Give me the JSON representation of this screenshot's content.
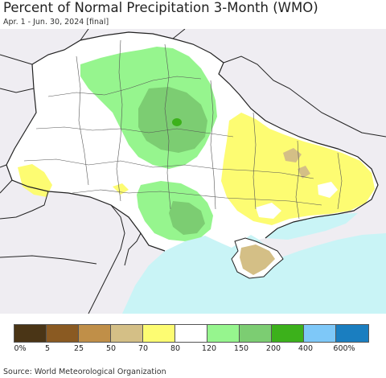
{
  "header": {
    "title": "Percent of Normal Precipitation 3-Month (WMO)",
    "subtitle": "Apr. 1 - Jun. 30, 2024 [final]"
  },
  "legend": {
    "colors": [
      "#4a3516",
      "#8a5a22",
      "#c08f48",
      "#d4bf86",
      "#fdfc72",
      "#ffffff",
      "#96f58e",
      "#7ccd72",
      "#3cb11b",
      "#7ec8f8",
      "#1a7ec0"
    ],
    "labels": [
      "0%",
      "5",
      "25",
      "50",
      "70",
      "80",
      "120",
      "150",
      "200",
      "400",
      "600%"
    ]
  },
  "map": {
    "colors": {
      "background_land": "#efedf2",
      "country": "#ffffff",
      "sea": "#c9f4f6",
      "near_normal": "#ffffff",
      "dry_70_80": "#fdfc72",
      "dry_50_70": "#d4bf86",
      "wet_120_150": "#96f58e",
      "wet_150_200": "#7ccd72",
      "wet_200_400": "#3cb11b",
      "borders": "#222222",
      "admin_lines": "#555555"
    }
  },
  "footer": {
    "source": "Source: World Meteorological Organization"
  }
}
